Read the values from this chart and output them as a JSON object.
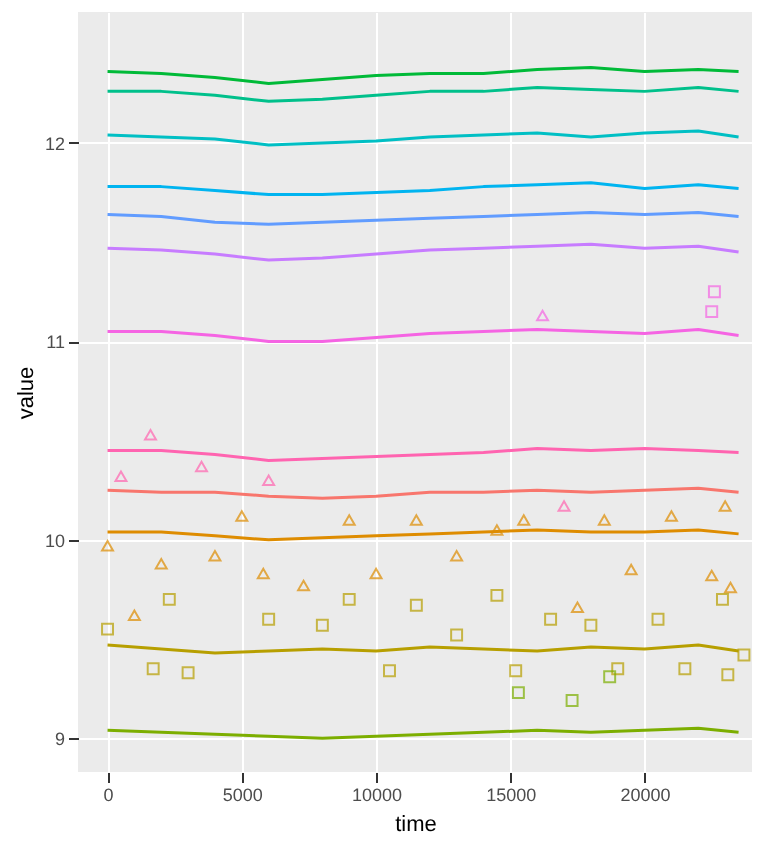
{
  "chart_data": {
    "type": "line",
    "xlabel": "time",
    "ylabel": "value",
    "xlim": [
      -1100,
      24000
    ],
    "ylim": [
      8.83,
      12.66
    ],
    "xticks": [
      0,
      5000,
      10000,
      15000,
      20000
    ],
    "yticks": [
      9,
      10,
      11,
      12
    ],
    "grid": true,
    "line_style": "solid",
    "x": [
      0,
      2000,
      4000,
      6000,
      8000,
      10000,
      12000,
      14000,
      16000,
      18000,
      20000,
      22000,
      23500
    ],
    "series": [
      {
        "color": "#7CAE00",
        "values": [
          9.04,
          9.03,
          9.02,
          9.01,
          9.0,
          9.01,
          9.02,
          9.03,
          9.04,
          9.03,
          9.04,
          9.05,
          9.03
        ]
      },
      {
        "color": "#B79F00",
        "values": [
          9.47,
          9.45,
          9.43,
          9.44,
          9.45,
          9.44,
          9.46,
          9.45,
          9.44,
          9.46,
          9.45,
          9.47,
          9.44
        ]
      },
      {
        "color": "#DE8C00",
        "values": [
          10.04,
          10.04,
          10.02,
          10.0,
          10.01,
          10.02,
          10.03,
          10.04,
          10.05,
          10.04,
          10.04,
          10.05,
          10.03
        ]
      },
      {
        "color": "#F8766D",
        "values": [
          10.25,
          10.24,
          10.24,
          10.22,
          10.21,
          10.22,
          10.24,
          10.24,
          10.25,
          10.24,
          10.25,
          10.26,
          10.24
        ]
      },
      {
        "color": "#FF64B0",
        "values": [
          10.45,
          10.45,
          10.43,
          10.4,
          10.41,
          10.42,
          10.43,
          10.44,
          10.46,
          10.45,
          10.46,
          10.45,
          10.44
        ]
      },
      {
        "color": "#F564E3",
        "values": [
          11.05,
          11.05,
          11.03,
          11.0,
          11.0,
          11.02,
          11.04,
          11.05,
          11.06,
          11.05,
          11.04,
          11.06,
          11.03
        ]
      },
      {
        "color": "#C77CFF",
        "values": [
          11.47,
          11.46,
          11.44,
          11.41,
          11.42,
          11.44,
          11.46,
          11.47,
          11.48,
          11.49,
          11.47,
          11.48,
          11.45
        ]
      },
      {
        "color": "#619CFF",
        "values": [
          11.64,
          11.63,
          11.6,
          11.59,
          11.6,
          11.61,
          11.62,
          11.63,
          11.64,
          11.65,
          11.64,
          11.65,
          11.63
        ]
      },
      {
        "color": "#00B4F0",
        "values": [
          11.78,
          11.78,
          11.76,
          11.74,
          11.74,
          11.75,
          11.76,
          11.78,
          11.79,
          11.8,
          11.77,
          11.79,
          11.77
        ]
      },
      {
        "color": "#00BFC4",
        "values": [
          12.04,
          12.03,
          12.02,
          11.99,
          12.0,
          12.01,
          12.03,
          12.04,
          12.05,
          12.03,
          12.05,
          12.06,
          12.03
        ]
      },
      {
        "color": "#00C08B",
        "values": [
          12.26,
          12.26,
          12.24,
          12.21,
          12.22,
          12.24,
          12.26,
          12.26,
          12.28,
          12.27,
          12.26,
          12.28,
          12.26
        ]
      },
      {
        "color": "#00BA38",
        "values": [
          12.36,
          12.35,
          12.33,
          12.3,
          12.32,
          12.34,
          12.35,
          12.35,
          12.37,
          12.38,
          12.36,
          12.37,
          12.36
        ]
      },
      {
        "type": "scatter",
        "marker": "triangle",
        "color": "#DE8C00",
        "x": [
          0,
          1000,
          2000,
          4000,
          5000,
          5800,
          7300,
          9000,
          10000,
          11500,
          13000,
          14500,
          15500,
          17500,
          18500,
          19500,
          21000,
          22500,
          23000,
          23200
        ],
        "values": [
          9.97,
          9.62,
          9.88,
          9.92,
          10.12,
          9.83,
          9.77,
          10.1,
          9.83,
          10.1,
          9.92,
          10.05,
          10.1,
          9.66,
          10.1,
          9.85,
          10.12,
          9.82,
          10.17,
          9.76
        ]
      },
      {
        "type": "scatter",
        "marker": "square",
        "color": "#B79F00",
        "x": [
          0,
          1700,
          2300,
          3000,
          6000,
          8000,
          9000,
          10500,
          11500,
          13000,
          14500,
          15200,
          16500,
          18000,
          19000,
          20500,
          21500,
          22900,
          23100,
          23700
        ],
        "values": [
          9.55,
          9.35,
          9.7,
          9.33,
          9.6,
          9.57,
          9.7,
          9.34,
          9.67,
          9.52,
          9.72,
          9.34,
          9.6,
          9.57,
          9.35,
          9.6,
          9.35,
          9.7,
          9.32,
          9.42
        ]
      },
      {
        "type": "scatter",
        "marker": "triangle",
        "color": "#FF64B0",
        "x": [
          500,
          1600,
          3500,
          6000,
          17000
        ],
        "values": [
          10.32,
          10.53,
          10.37,
          10.3,
          10.17
        ]
      },
      {
        "type": "scatter",
        "marker": "square",
        "color": "#7CAE00",
        "x": [
          15300,
          17300,
          18700
        ],
        "values": [
          9.23,
          9.19,
          9.31
        ]
      },
      {
        "type": "scatter",
        "marker": "square",
        "color": "#F564E3",
        "x": [
          22500,
          22600
        ],
        "values": [
          11.15,
          11.25
        ]
      },
      {
        "type": "scatter",
        "marker": "triangle",
        "color": "#F564E3",
        "x": [
          16200
        ],
        "values": [
          11.13
        ]
      }
    ]
  }
}
